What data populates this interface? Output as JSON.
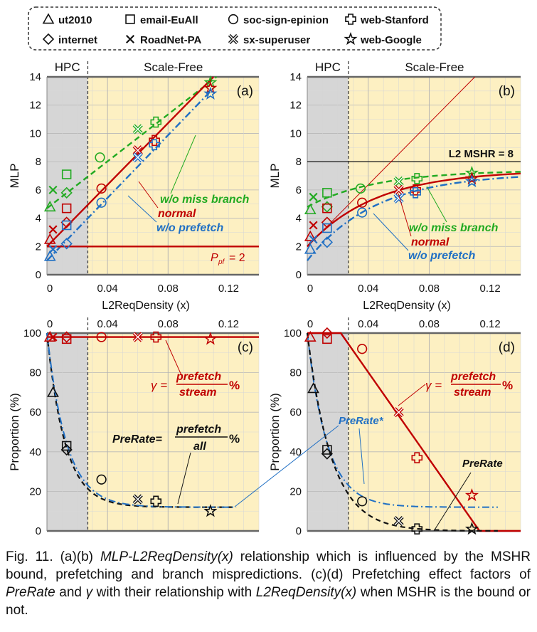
{
  "legend": [
    {
      "marker": "triangle",
      "label": "ut2010"
    },
    {
      "marker": "square",
      "label": "email-EuAll"
    },
    {
      "marker": "circle",
      "label": "soc-sign-epinion"
    },
    {
      "marker": "cross",
      "label": "web-Stanford"
    },
    {
      "marker": "diamond",
      "label": "internet"
    },
    {
      "marker": "x",
      "label": "RoadNet-PA"
    },
    {
      "marker": "xcircle",
      "label": "sx-superuser"
    },
    {
      "marker": "star",
      "label": "web-Google"
    }
  ],
  "colors": {
    "red": "#c00000",
    "green": "#22aa22",
    "blue": "#1f6fc4",
    "black": "#111111",
    "hpc_bg": "#d6d6d6",
    "sf_bg": "#fdf0c2"
  },
  "region_labels": {
    "hpc": "HPC",
    "scale_free": "Scale-Free"
  },
  "chart_data": [
    {
      "panel": "(a)",
      "type": "scatter",
      "xlabel": "L2ReqDensity (x)",
      "ylabel": "MLP",
      "xlim": [
        0,
        0.14
      ],
      "ylim": [
        0,
        14
      ],
      "xticks": [
        "0",
        "0.04",
        "0.08",
        "0.12"
      ],
      "yticks": [
        "0",
        "2",
        "4",
        "6",
        "8",
        "10",
        "12",
        "14"
      ],
      "hpc_boundary": 0.027,
      "series": [
        {
          "name": "w/o miss branch",
          "color": "green",
          "points": [
            [
              0.002,
              4.8
            ],
            [
              0.004,
              6.0
            ],
            [
              0.013,
              7.1
            ],
            [
              0.013,
              5.8
            ],
            [
              0.035,
              8.3
            ],
            [
              0.06,
              10.3
            ],
            [
              0.072,
              10.8
            ],
            [
              0.108,
              13.6
            ]
          ]
        },
        {
          "name": "normal",
          "color": "red",
          "points": [
            [
              0.002,
              2.5
            ],
            [
              0.004,
              3.2
            ],
            [
              0.013,
              4.7
            ],
            [
              0.013,
              3.7
            ],
            [
              0.036,
              6.1
            ],
            [
              0.06,
              8.8
            ],
            [
              0.071,
              9.5
            ],
            [
              0.108,
              13.2
            ]
          ]
        },
        {
          "name": "w/o prefetch",
          "color": "blue",
          "points": [
            [
              0.002,
              1.3
            ],
            [
              0.004,
              1.8
            ],
            [
              0.013,
              3.5
            ],
            [
              0.013,
              2.2
            ],
            [
              0.036,
              5.1
            ],
            [
              0.06,
              8.3
            ],
            [
              0.071,
              9.2
            ],
            [
              0.108,
              12.8
            ]
          ]
        }
      ],
      "lines": [
        {
          "name": "w/o miss branch",
          "color": "green",
          "style": "dashed",
          "from": [
            0,
            4.7
          ],
          "to": [
            0.112,
            14
          ]
        },
        {
          "name": "normal",
          "color": "red",
          "style": "solid",
          "from": [
            0,
            2.0
          ],
          "to": [
            0.11,
            14
          ]
        },
        {
          "name": "w/o prefetch",
          "color": "blue",
          "style": "dashdot",
          "from": [
            0,
            1.0
          ],
          "to": [
            0.11,
            13.2
          ]
        },
        {
          "name": "P_pf = 2",
          "color": "red",
          "style": "solid",
          "from": [
            0,
            2
          ],
          "to": [
            0.14,
            2
          ]
        }
      ],
      "annotations": {
        "miss_branch": "w/o miss branch",
        "normal": "normal",
        "prefetch": "w/o prefetch",
        "ppf": "P",
        "ppf_sub": "pf",
        "ppf_val": "= 2"
      }
    },
    {
      "panel": "(b)",
      "type": "scatter",
      "xlabel": "L2ReqDensity (x)",
      "ylabel": "MLP",
      "xlim": [
        0,
        0.14
      ],
      "ylim": [
        0,
        14
      ],
      "xticks": [
        "0",
        "0.04",
        "0.08",
        "0.12"
      ],
      "yticks": [
        "0",
        "2",
        "4",
        "6",
        "8",
        "10",
        "12",
        "14"
      ],
      "hpc_boundary": 0.027,
      "mshr_line": {
        "label": "L2 MSHR = 8",
        "y": 8
      },
      "series": [
        {
          "name": "w/o miss branch",
          "color": "green",
          "points": [
            [
              0.002,
              4.6
            ],
            [
              0.004,
              5.5
            ],
            [
              0.013,
              5.8
            ],
            [
              0.013,
              4.8
            ],
            [
              0.035,
              6.1
            ],
            [
              0.06,
              6.6
            ],
            [
              0.072,
              6.8
            ],
            [
              0.108,
              7.2
            ]
          ]
        },
        {
          "name": "normal",
          "color": "red",
          "points": [
            [
              0.002,
              2.7
            ],
            [
              0.004,
              3.5
            ],
            [
              0.013,
              4.7
            ],
            [
              0.013,
              3.7
            ],
            [
              0.036,
              5.1
            ],
            [
              0.06,
              6.0
            ],
            [
              0.071,
              6.0
            ],
            [
              0.108,
              6.8
            ]
          ]
        },
        {
          "name": "w/o prefetch",
          "color": "blue",
          "points": [
            [
              0.002,
              1.8
            ],
            [
              0.004,
              2.5
            ],
            [
              0.013,
              3.3
            ],
            [
              0.013,
              2.3
            ],
            [
              0.036,
              4.4
            ],
            [
              0.06,
              5.4
            ],
            [
              0.071,
              5.8
            ],
            [
              0.108,
              6.6
            ]
          ]
        }
      ],
      "annotations": {
        "mshr": "L2 MSHR = 8",
        "miss_branch": "w/o miss branch",
        "normal": "normal",
        "prefetch": "w/o prefetch"
      }
    },
    {
      "panel": "(c)",
      "type": "scatter",
      "xlabel": "",
      "ylabel": "Proportion (%)",
      "xlim": [
        0,
        0.14
      ],
      "ylim": [
        0,
        100
      ],
      "xticks": [
        "0",
        "0.04",
        "0.08",
        "0.12"
      ],
      "yticks": [
        "0",
        "20",
        "40",
        "60",
        "80",
        "100"
      ],
      "hpc_boundary": 0.027,
      "series": [
        {
          "name": "γ",
          "color": "red",
          "points": [
            [
              0.002,
              98
            ],
            [
              0.004,
              98
            ],
            [
              0.013,
              97
            ],
            [
              0.013,
              98
            ],
            [
              0.036,
              98
            ],
            [
              0.06,
              98
            ],
            [
              0.072,
              98
            ],
            [
              0.108,
              97
            ]
          ]
        },
        {
          "name": "PreRate",
          "color": "black",
          "points": [
            [
              0.004,
              70
            ],
            [
              0.013,
              43
            ],
            [
              0.013,
              41
            ],
            [
              0.036,
              26
            ],
            [
              0.06,
              16
            ],
            [
              0.072,
              15
            ],
            [
              0.108,
              10
            ]
          ]
        }
      ],
      "annotations": {
        "gamma": "γ =",
        "frac_num": "prefetch",
        "frac_den": "stream",
        "pct": "%",
        "prerate": "PreRate=",
        "prerate_num": "prefetch",
        "prerate_den": "all",
        "prerate_pct": "%"
      }
    },
    {
      "panel": "(d)",
      "type": "scatter",
      "xlabel": "",
      "ylabel": "Proportion (%)",
      "xlim": [
        0,
        0.14
      ],
      "ylim": [
        0,
        100
      ],
      "xticks": [
        "0",
        "0.04",
        "0.08",
        "0.12"
      ],
      "yticks": [
        "0",
        "20",
        "40",
        "60",
        "80",
        "100"
      ],
      "hpc_boundary": 0.027,
      "series": [
        {
          "name": "γ",
          "color": "red",
          "points": [
            [
              0.002,
              98
            ],
            [
              0.013,
              97
            ],
            [
              0.013,
              100
            ],
            [
              0.036,
              92
            ],
            [
              0.06,
              60
            ],
            [
              0.072,
              37
            ],
            [
              0.108,
              18
            ]
          ]
        },
        {
          "name": "PreRate",
          "color": "black",
          "points": [
            [
              0.004,
              72
            ],
            [
              0.013,
              41
            ],
            [
              0.013,
              39
            ],
            [
              0.036,
              15
            ],
            [
              0.06,
              5
            ],
            [
              0.072,
              1
            ],
            [
              0.108,
              1
            ]
          ]
        }
      ],
      "annotations": {
        "gamma": "γ =",
        "frac_num": "prefetch",
        "frac_den": "stream",
        "pct": "%",
        "prerate_star": "PreRate*",
        "prerate": "PreRate"
      }
    }
  ],
  "caption": {
    "p1": "Fig. 11. (a)(b) ",
    "p2": "MLP-L2ReqDensity(x)",
    "p3": " relationship which is influenced by the MSHR bound, prefetching and branch mispredictions. (c)(d) Prefetching effect factors of ",
    "p4": "PreRate",
    "p5": " and ",
    "p6": "γ",
    "p7": " with their relationship with ",
    "p8": "L2ReqDensity(x)",
    "p9": " when MSHR is the bound or not."
  }
}
